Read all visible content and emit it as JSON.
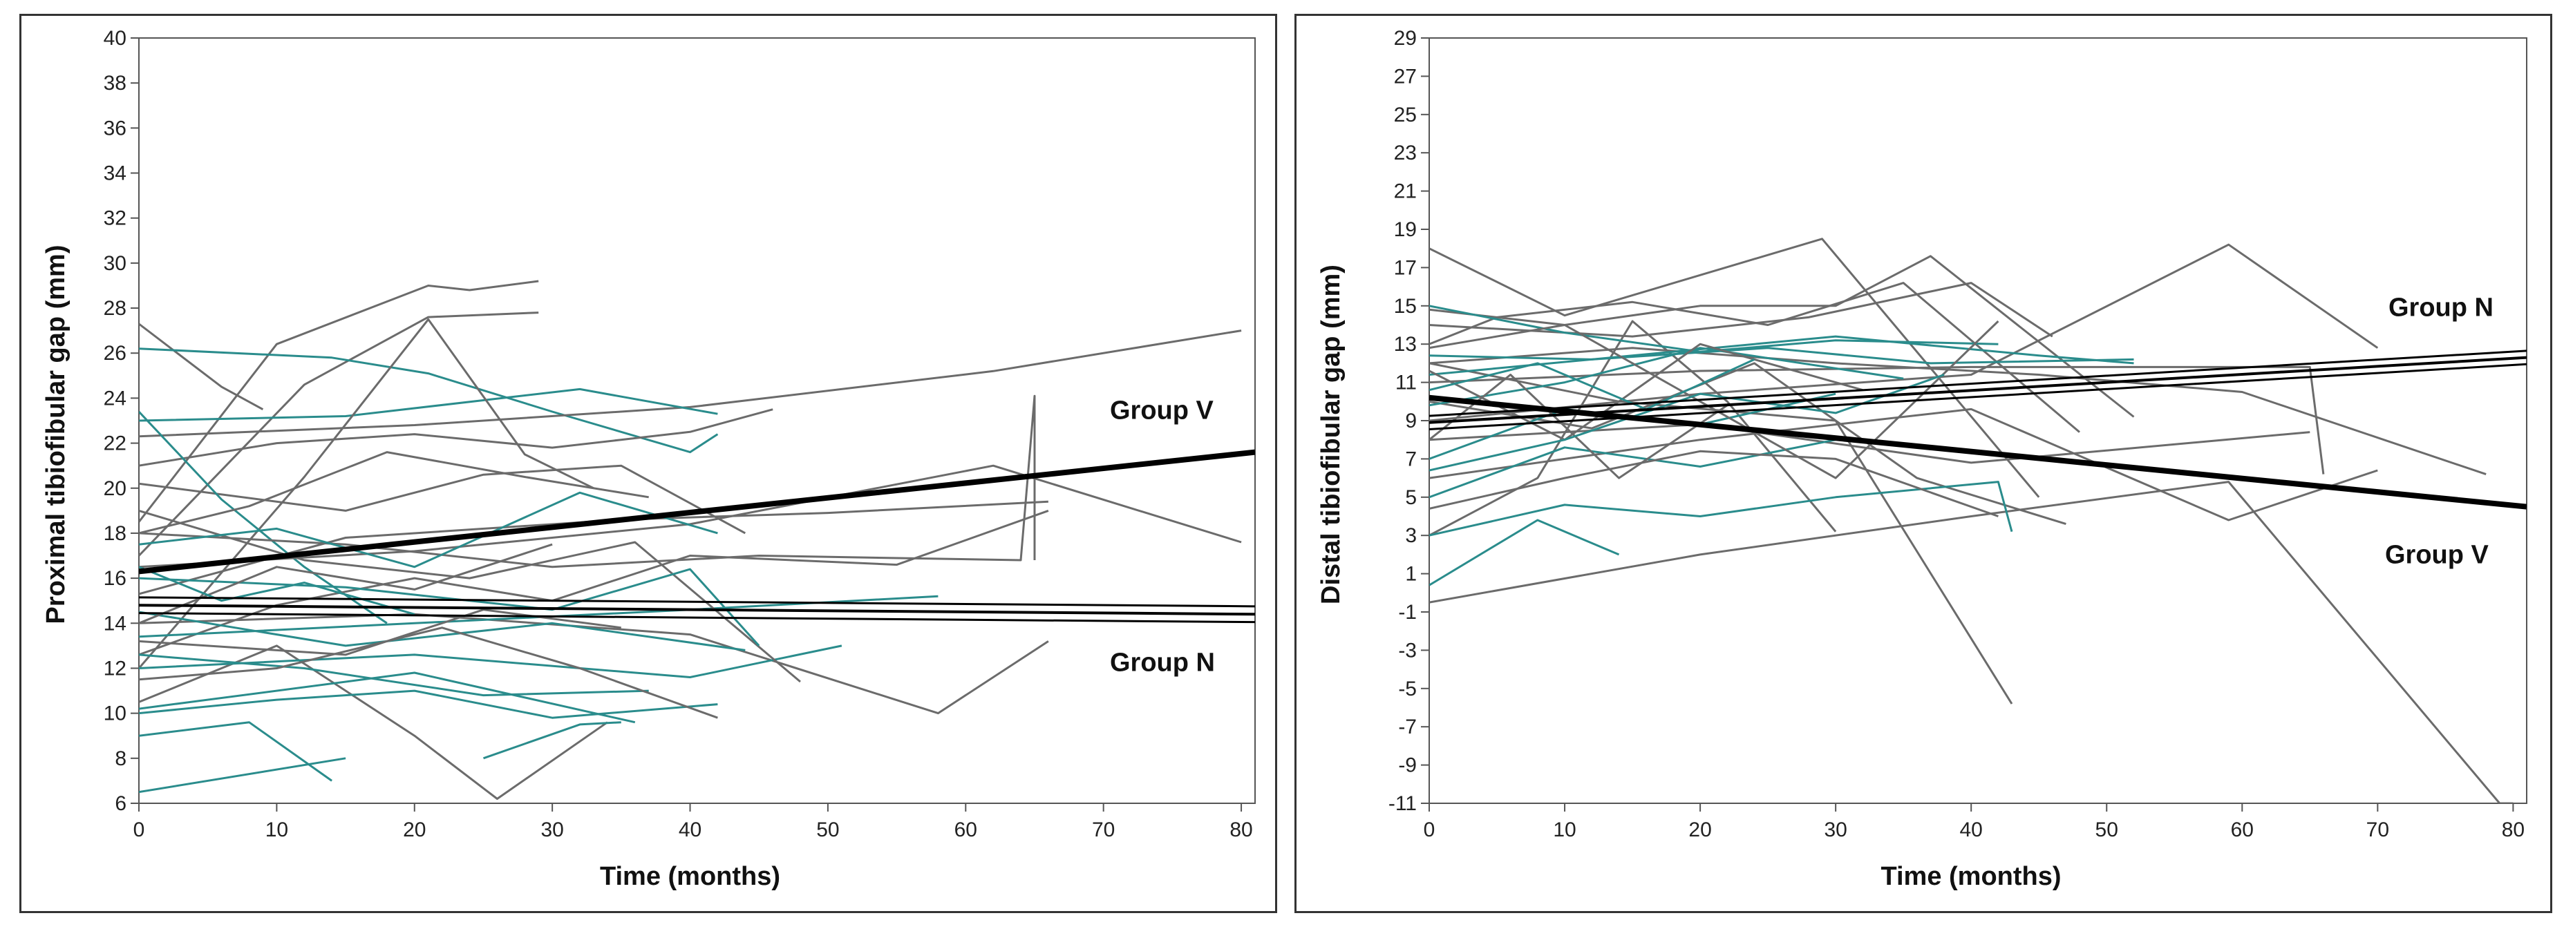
{
  "chart_data": [
    {
      "type": "line",
      "xlabel": "Time (months)",
      "ylabel": "Proximal tibiofibular gap (mm)",
      "xlim": [
        0,
        81
      ],
      "ylim": [
        6,
        40
      ],
      "xticks": [
        0,
        10,
        20,
        30,
        40,
        50,
        60,
        70,
        80
      ],
      "yticks": [
        6,
        8,
        10,
        12,
        14,
        16,
        18,
        20,
        22,
        24,
        26,
        28,
        30,
        32,
        34,
        36,
        38,
        40
      ],
      "colors": {
        "individual": "#6b6b6b",
        "individual_alt": "#2a8c8c",
        "mean": "#000000"
      },
      "mean_lines": [
        {
          "name": "Group V",
          "x": [
            0,
            81
          ],
          "y": [
            16.3,
            21.6
          ]
        },
        {
          "name": "Group N",
          "x": [
            0,
            81
          ],
          "y": [
            14.8,
            14.4
          ],
          "band": 0.35
        }
      ],
      "series": [
        {
          "name": "s1",
          "color": "#6b6b6b",
          "x": [
            0,
            10,
            21,
            24,
            29
          ],
          "y": [
            18.5,
            26.4,
            29.0,
            28.8,
            29.2
          ]
        },
        {
          "name": "s2",
          "color": "#6b6b6b",
          "x": [
            0,
            12,
            21,
            29
          ],
          "y": [
            17.0,
            24.6,
            27.6,
            27.8
          ]
        },
        {
          "name": "s3",
          "color": "#6b6b6b",
          "x": [
            0,
            6,
            9
          ],
          "y": [
            27.3,
            24.5,
            23.5
          ]
        },
        {
          "name": "s4",
          "color": "#2a8c8c",
          "x": [
            0,
            14,
            21,
            30,
            40,
            42
          ],
          "y": [
            26.2,
            25.8,
            25.1,
            23.4,
            21.6,
            22.4
          ]
        },
        {
          "name": "s5",
          "color": "#6b6b6b",
          "x": [
            0,
            20,
            40,
            62,
            80
          ],
          "y": [
            22.3,
            22.8,
            23.6,
            25.2,
            27.0
          ]
        },
        {
          "name": "s6",
          "color": "#2a8c8c",
          "x": [
            0,
            15,
            32,
            42
          ],
          "y": [
            23.0,
            23.2,
            24.4,
            23.3
          ]
        },
        {
          "name": "s7",
          "color": "#6b6b6b",
          "x": [
            0,
            12,
            21,
            28,
            33
          ],
          "y": [
            12.0,
            20.5,
            27.5,
            21.5,
            20.0
          ]
        },
        {
          "name": "s8",
          "color": "#6b6b6b",
          "x": [
            0,
            10,
            20,
            30,
            40,
            46
          ],
          "y": [
            21.0,
            22.0,
            22.4,
            21.8,
            22.5,
            23.5
          ]
        },
        {
          "name": "s9",
          "color": "#6b6b6b",
          "x": [
            0,
            15,
            25,
            35,
            44
          ],
          "y": [
            20.2,
            19.0,
            20.6,
            21.0,
            18.0
          ]
        },
        {
          "name": "s10",
          "color": "#2a8c8c",
          "x": [
            0,
            6,
            12,
            18
          ],
          "y": [
            23.4,
            19.5,
            16.5,
            14.0
          ]
        },
        {
          "name": "s11",
          "color": "#6b6b6b",
          "x": [
            0,
            20,
            40,
            62,
            80
          ],
          "y": [
            16.5,
            17.2,
            18.4,
            21.0,
            17.6
          ]
        },
        {
          "name": "s12",
          "color": "#6b6b6b",
          "x": [
            0,
            15,
            30,
            45,
            64,
            65,
            65
          ],
          "y": [
            18.0,
            17.5,
            16.5,
            17.0,
            16.8,
            24.1,
            16.8
          ]
        },
        {
          "name": "s13",
          "color": "#6b6b6b",
          "x": [
            0,
            15,
            35,
            50,
            66
          ],
          "y": [
            15.3,
            17.8,
            18.6,
            18.9,
            19.4
          ]
        },
        {
          "name": "s14",
          "color": "#6b6b6b",
          "x": [
            0,
            10,
            20,
            30,
            40,
            55,
            66
          ],
          "y": [
            12.6,
            14.8,
            16.0,
            15.0,
            17.0,
            16.6,
            19.0
          ]
        },
        {
          "name": "s15",
          "color": "#6b6b6b",
          "x": [
            0,
            20,
            40,
            58,
            66
          ],
          "y": [
            14.0,
            14.4,
            13.5,
            10.0,
            13.2
          ]
        },
        {
          "name": "s16",
          "color": "#6b6b6b",
          "x": [
            0,
            10,
            20,
            26,
            34
          ],
          "y": [
            10.5,
            13.0,
            9.0,
            6.2,
            9.6
          ]
        },
        {
          "name": "s17",
          "color": "#2a8c8c",
          "x": [
            0,
            10,
            20,
            30,
            42
          ],
          "y": [
            10.0,
            10.6,
            11.0,
            9.8,
            10.4
          ]
        },
        {
          "name": "s18",
          "color": "#2a8c8c",
          "x": [
            0,
            15
          ],
          "y": [
            6.5,
            8.0
          ]
        },
        {
          "name": "s19",
          "color": "#2a8c8c",
          "x": [
            0,
            8,
            14
          ],
          "y": [
            9.0,
            9.6,
            7.0
          ]
        },
        {
          "name": "s20",
          "color": "#2a8c8c",
          "x": [
            25,
            32,
            35
          ],
          "y": [
            8.0,
            9.5,
            9.6
          ]
        },
        {
          "name": "s21",
          "color": "#2a8c8c",
          "x": [
            0,
            20,
            40,
            51
          ],
          "y": [
            12.0,
            12.6,
            11.6,
            13.0
          ]
        },
        {
          "name": "s22",
          "color": "#2a8c8c",
          "x": [
            0,
            12,
            25,
            37
          ],
          "y": [
            12.6,
            12.0,
            10.8,
            11.0
          ]
        },
        {
          "name": "s23",
          "color": "#2a8c8c",
          "x": [
            0,
            15,
            30,
            44
          ],
          "y": [
            14.5,
            13.0,
            14.0,
            12.8
          ]
        },
        {
          "name": "s24",
          "color": "#2a8c8c",
          "x": [
            0,
            20,
            40,
            58
          ],
          "y": [
            13.4,
            14.0,
            14.6,
            15.2
          ]
        },
        {
          "name": "s25",
          "color": "#6b6b6b",
          "x": [
            0,
            12,
            24,
            36,
            48
          ],
          "y": [
            19.0,
            16.8,
            16.0,
            17.6,
            11.4
          ]
        },
        {
          "name": "s26",
          "color": "#2a8c8c",
          "x": [
            0,
            15,
            30,
            40,
            45
          ],
          "y": [
            16.0,
            15.6,
            14.6,
            16.4,
            13.0
          ]
        },
        {
          "name": "s27",
          "color": "#6b6b6b",
          "x": [
            0,
            10,
            22,
            32,
            42
          ],
          "y": [
            11.5,
            12.0,
            13.8,
            12.0,
            9.8
          ]
        },
        {
          "name": "s28",
          "color": "#2a8c8c",
          "x": [
            0,
            10,
            20,
            32,
            42
          ],
          "y": [
            17.5,
            18.2,
            16.5,
            19.8,
            18.0
          ]
        },
        {
          "name": "s29",
          "color": "#6b6b6b",
          "x": [
            0,
            8,
            18,
            28,
            37
          ],
          "y": [
            18.0,
            19.2,
            21.6,
            20.5,
            19.6
          ]
        },
        {
          "name": "s30",
          "color": "#6b6b6b",
          "x": [
            0,
            10,
            20,
            30
          ],
          "y": [
            14.0,
            16.5,
            15.5,
            17.5
          ]
        },
        {
          "name": "s31",
          "color": "#2a8c8c",
          "x": [
            0,
            6,
            12,
            20
          ],
          "y": [
            16.5,
            15.0,
            15.8,
            14.4
          ]
        },
        {
          "name": "s32",
          "color": "#6b6b6b",
          "x": [
            0,
            15,
            25,
            35
          ],
          "y": [
            13.2,
            12.6,
            14.6,
            13.8
          ]
        },
        {
          "name": "s33",
          "color": "#2a8c8c",
          "x": [
            0,
            20,
            36
          ],
          "y": [
            10.2,
            11.8,
            9.6
          ]
        }
      ]
    },
    {
      "type": "line",
      "xlabel": "Time (months)",
      "ylabel": "Distal tibiofibular gap (mm)",
      "xlim": [
        0,
        81
      ],
      "ylim": [
        -11,
        29
      ],
      "xticks": [
        0,
        10,
        20,
        30,
        40,
        50,
        60,
        70,
        80
      ],
      "yticks": [
        -11,
        -9,
        -7,
        -5,
        -3,
        -1,
        1,
        3,
        5,
        7,
        9,
        11,
        13,
        15,
        17,
        19,
        21,
        23,
        25,
        27,
        29
      ],
      "colors": {
        "individual": "#6b6b6b",
        "individual_alt": "#2a8c8c",
        "mean": "#000000"
      },
      "mean_lines": [
        {
          "name": "Group N",
          "x": [
            0,
            81
          ],
          "y": [
            8.9,
            12.3
          ],
          "band": 0.35
        },
        {
          "name": "Group V",
          "x": [
            0,
            81
          ],
          "y": [
            10.2,
            4.5
          ]
        }
      ],
      "series": [
        {
          "name": "d1",
          "color": "#6b6b6b",
          "x": [
            0,
            20,
            40,
            59,
            79,
            80
          ],
          "y": [
            -0.5,
            2.0,
            4.0,
            5.8,
            -11,
            -11
          ]
        },
        {
          "name": "d2",
          "color": "#6b6b6b",
          "x": [
            0,
            10,
            29,
            45
          ],
          "y": [
            18.0,
            14.5,
            18.5,
            5.0
          ]
        },
        {
          "name": "d3",
          "color": "#6b6b6b",
          "x": [
            0,
            14,
            30,
            43
          ],
          "y": [
            12.0,
            10.0,
            9.0,
            -5.8
          ]
        },
        {
          "name": "d4",
          "color": "#6b6b6b",
          "x": [
            0,
            20,
            40,
            59,
            70
          ],
          "y": [
            9.0,
            10.4,
            11.4,
            18.2,
            12.8
          ]
        },
        {
          "name": "d5",
          "color": "#6b6b6b",
          "x": [
            0,
            20,
            40,
            59,
            70
          ],
          "y": [
            6.0,
            8.0,
            9.6,
            3.8,
            6.4
          ]
        },
        {
          "name": "d6",
          "color": "#6b6b6b",
          "x": [
            0,
            15,
            30,
            45,
            60,
            78
          ],
          "y": [
            12.0,
            12.8,
            12.0,
            11.4,
            10.5,
            6.2
          ]
        },
        {
          "name": "d7",
          "color": "#6b6b6b",
          "x": [
            0,
            20,
            40,
            65
          ],
          "y": [
            8.0,
            8.8,
            6.8,
            8.4
          ]
        },
        {
          "name": "d8",
          "color": "#6b6b6b",
          "x": [
            0,
            20,
            40,
            65,
            66
          ],
          "y": [
            11.0,
            11.6,
            11.8,
            11.8,
            6.2
          ]
        },
        {
          "name": "d9",
          "color": "#6b6b6b",
          "x": [
            0,
            15,
            28,
            40,
            46
          ],
          "y": [
            14.0,
            13.4,
            14.4,
            16.2,
            13.4
          ]
        },
        {
          "name": "d10",
          "color": "#6b6b6b",
          "x": [
            0,
            8,
            15,
            22,
            30
          ],
          "y": [
            3.0,
            6.0,
            14.2,
            10.0,
            3.2
          ]
        },
        {
          "name": "d11",
          "color": "#6b6b6b",
          "x": [
            0,
            10,
            20,
            30,
            37,
            52
          ],
          "y": [
            14.8,
            14.0,
            15.0,
            15.0,
            17.6,
            9.2
          ]
        },
        {
          "name": "d12",
          "color": "#6b6b6b",
          "x": [
            0,
            5,
            15,
            25,
            35,
            48
          ],
          "y": [
            13.0,
            14.4,
            15.2,
            14.0,
            16.2,
            8.4
          ]
        },
        {
          "name": "d13",
          "color": "#6b6b6b",
          "x": [
            0,
            12,
            24,
            36,
            47
          ],
          "y": [
            10.0,
            8.6,
            12.0,
            6.0,
            3.6
          ]
        },
        {
          "name": "d14",
          "color": "#2a8c8c",
          "x": [
            0,
            10,
            20,
            30,
            42,
            43
          ],
          "y": [
            3.0,
            4.6,
            4.0,
            5.0,
            5.8,
            3.2
          ]
        },
        {
          "name": "d15",
          "color": "#2a8c8c",
          "x": [
            0,
            10,
            20,
            30,
            42
          ],
          "y": [
            15.0,
            13.6,
            12.6,
            13.2,
            13.0
          ]
        },
        {
          "name": "d16",
          "color": "#2a8c8c",
          "x": [
            0,
            8,
            14
          ],
          "y": [
            0.4,
            3.8,
            2.0
          ]
        },
        {
          "name": "d17",
          "color": "#2a8c8c",
          "x": [
            0,
            12,
            25,
            37,
            52
          ],
          "y": [
            12.4,
            12.2,
            12.8,
            12.0,
            12.2
          ]
        },
        {
          "name": "d18",
          "color": "#2a8c8c",
          "x": [
            0,
            10,
            20,
            30
          ],
          "y": [
            7.0,
            9.6,
            8.8,
            10.4
          ]
        },
        {
          "name": "d19",
          "color": "#2a8c8c",
          "x": [
            0,
            15,
            30,
            45,
            52
          ],
          "y": [
            11.4,
            12.4,
            13.4,
            12.4,
            12.0
          ]
        },
        {
          "name": "d20",
          "color": "#2a8c8c",
          "x": [
            0,
            10,
            20,
            30
          ],
          "y": [
            5.0,
            7.6,
            6.6,
            8.0
          ]
        },
        {
          "name": "d21",
          "color": "#2a8c8c",
          "x": [
            0,
            10,
            20,
            35
          ],
          "y": [
            9.8,
            11.0,
            12.8,
            11.2
          ]
        },
        {
          "name": "d22",
          "color": "#6b6b6b",
          "x": [
            0,
            10,
            20,
            30,
            42
          ],
          "y": [
            12.8,
            14.0,
            10.0,
            6.0,
            14.2
          ]
        },
        {
          "name": "d23",
          "color": "#6b6b6b",
          "x": [
            0,
            6,
            14,
            22
          ],
          "y": [
            8.0,
            11.4,
            6.0,
            9.8
          ]
        },
        {
          "name": "d24",
          "color": "#6b6b6b",
          "x": [
            0,
            10,
            20,
            32
          ],
          "y": [
            11.6,
            8.0,
            13.0,
            10.6
          ]
        },
        {
          "name": "d25",
          "color": "#2a8c8c",
          "x": [
            0,
            10,
            20,
            30,
            38
          ],
          "y": [
            6.4,
            8.0,
            10.4,
            9.4,
            11.4
          ]
        },
        {
          "name": "d26",
          "color": "#6b6b6b",
          "x": [
            0,
            10,
            20,
            30,
            42
          ],
          "y": [
            4.4,
            6.0,
            7.4,
            7.0,
            4.0
          ]
        },
        {
          "name": "d27",
          "color": "#2a8c8c",
          "x": [
            0,
            8,
            16,
            24
          ],
          "y": [
            10.6,
            12.0,
            9.6,
            12.2
          ]
        }
      ]
    }
  ]
}
